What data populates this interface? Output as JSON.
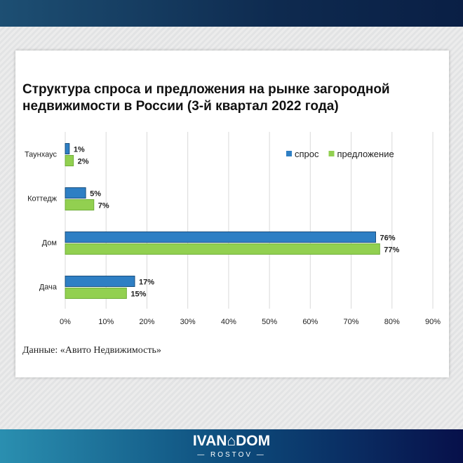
{
  "title": "Структура спроса и предложения на рынке загородной недвижимости в России (3-й квартал 2022 года)",
  "source": "Данные: «Авито Недвижимость»",
  "logo": {
    "main": "IVAN⌂DOM",
    "sub": "— ROSTOV —"
  },
  "chart_data": {
    "type": "bar",
    "orientation": "horizontal",
    "title": "Структура спроса и предложения на рынке загородной недвижимости в России (3-й квартал 2022 года)",
    "categories": [
      "Таунхаус",
      "Коттедж",
      "Дом",
      "Дача"
    ],
    "series": [
      {
        "name": "спрос",
        "color": "#2e7fc4",
        "values": [
          1,
          5,
          76,
          17
        ],
        "labels": [
          "1%",
          "5%",
          "76%",
          "17%"
        ]
      },
      {
        "name": "предложение",
        "color": "#92d050",
        "values": [
          2,
          7,
          77,
          15
        ],
        "labels": [
          "2%",
          "7%",
          "77%",
          "15%"
        ]
      }
    ],
    "xlim": [
      0,
      90
    ],
    "xticks": [
      "0%",
      "10%",
      "20%",
      "30%",
      "40%",
      "50%",
      "60%",
      "70%",
      "80%",
      "90%"
    ],
    "grid": true,
    "legend": "top-right"
  }
}
